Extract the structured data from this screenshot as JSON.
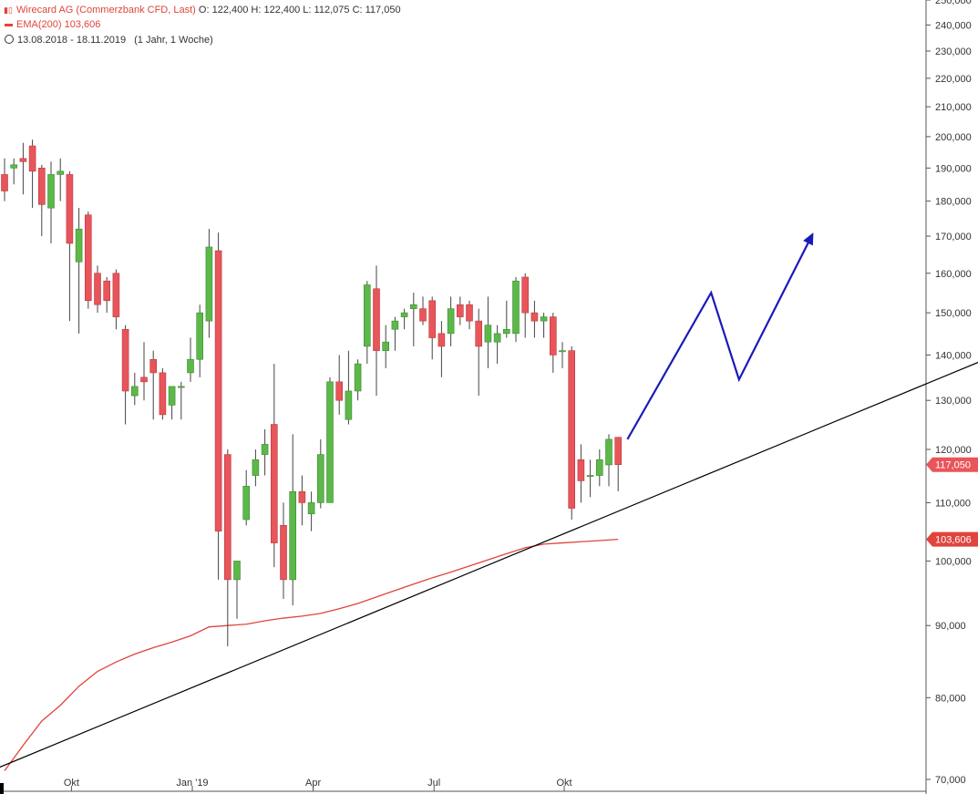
{
  "header": {
    "symbol": "Wirecard AG (Commerzbank CFD, Last)",
    "o_label": "O:",
    "o": "122,400",
    "h_label": "H:",
    "h": "122,400",
    "l_label": "L:",
    "l": "112,075",
    "c_label": "C:",
    "c": "117,050",
    "ema_label": "EMA(200)",
    "ema_value": "103,606",
    "range": "13.08.2018 - 18.11.2019",
    "period": "(1 Jahr, 1 Woche)"
  },
  "colors": {
    "up": "#5cb84a",
    "down": "#e8555a",
    "ema": "#e0443c",
    "trend": "#000000",
    "arrow": "#1a1ab8"
  },
  "chart_data": {
    "type": "candlestick",
    "scale": "log",
    "ylim": [
      70000,
      250000
    ],
    "yticks": [
      "250,000",
      "240,000",
      "230,000",
      "220,000",
      "210,000",
      "200,000",
      "190,000",
      "180,000",
      "170,000",
      "160,000",
      "150,000",
      "140,000",
      "130,000",
      "120,000",
      "110,000",
      "100,000",
      "90,000",
      "80,000",
      "70,000"
    ],
    "ytick_values": [
      250000,
      240000,
      230000,
      220000,
      210000,
      200000,
      190000,
      180000,
      170000,
      160000,
      150000,
      140000,
      130000,
      120000,
      110000,
      100000,
      90000,
      80000,
      70000
    ],
    "xticks": [
      {
        "label": "Okt",
        "week": 7
      },
      {
        "label": "Jan '19",
        "week": 20
      },
      {
        "label": "Apr",
        "week": 33
      },
      {
        "label": "Jul",
        "week": 46
      },
      {
        "label": "Okt",
        "week": 60
      }
    ],
    "price_tags": [
      {
        "label": "117,050",
        "value": 117050,
        "color": "#e8555a"
      },
      {
        "label": "103,606",
        "value": 103606,
        "color": "#e0443c"
      }
    ],
    "candles": [
      [
        188000,
        193000,
        180000,
        183000
      ],
      [
        190000,
        193000,
        185000,
        191000
      ],
      [
        193000,
        198000,
        182000,
        192000
      ],
      [
        197000,
        199000,
        178000,
        189000
      ],
      [
        190000,
        191000,
        170000,
        179000
      ],
      [
        178000,
        192000,
        168000,
        188000
      ],
      [
        188000,
        193000,
        180000,
        189000
      ],
      [
        188000,
        189000,
        148000,
        168000
      ],
      [
        163000,
        178000,
        145000,
        172000
      ],
      [
        176000,
        177000,
        151000,
        153000
      ],
      [
        160000,
        162000,
        150000,
        152000
      ],
      [
        158000,
        159000,
        150000,
        153000
      ],
      [
        160000,
        161000,
        146000,
        149000
      ],
      [
        146000,
        147000,
        125000,
        132000
      ],
      [
        131000,
        136000,
        129000,
        133000
      ],
      [
        135000,
        143000,
        130000,
        134000
      ],
      [
        139000,
        141000,
        126000,
        136000
      ],
      [
        136000,
        137000,
        126000,
        127000
      ],
      [
        129000,
        132000,
        126000,
        133000
      ],
      [
        133000,
        134000,
        126000,
        133000
      ],
      [
        136000,
        144000,
        134000,
        139000
      ],
      [
        139000,
        152000,
        135000,
        150000
      ],
      [
        148000,
        172000,
        144000,
        167000
      ],
      [
        166000,
        171000,
        97000,
        105000
      ],
      [
        119000,
        120000,
        87000,
        97000
      ],
      [
        97000,
        100000,
        91000,
        100000
      ],
      [
        107000,
        116000,
        106000,
        113000
      ],
      [
        115000,
        120000,
        113000,
        118000
      ],
      [
        119000,
        124000,
        115000,
        121000
      ],
      [
        125000,
        138000,
        99000,
        103000
      ],
      [
        106000,
        110000,
        94000,
        97000
      ],
      [
        97000,
        123000,
        93000,
        112000
      ],
      [
        112000,
        115000,
        106000,
        110000
      ],
      [
        108000,
        112000,
        105000,
        110000
      ],
      [
        110000,
        122000,
        109000,
        119000
      ],
      [
        110000,
        135000,
        110000,
        134000
      ],
      [
        134000,
        140000,
        127000,
        130000
      ],
      [
        126000,
        141000,
        125000,
        132000
      ],
      [
        132000,
        139000,
        130000,
        138000
      ],
      [
        142000,
        158000,
        138000,
        157000
      ],
      [
        156000,
        162000,
        131000,
        141000
      ],
      [
        141000,
        147000,
        137000,
        143000
      ],
      [
        146000,
        149000,
        141000,
        148000
      ],
      [
        149000,
        151000,
        146000,
        150000
      ],
      [
        151000,
        155000,
        142000,
        152000
      ],
      [
        151000,
        154000,
        147000,
        148000
      ],
      [
        153000,
        154000,
        139000,
        144000
      ],
      [
        145000,
        148000,
        135000,
        142000
      ],
      [
        145000,
        154000,
        142000,
        151000
      ],
      [
        152000,
        154000,
        147000,
        149000
      ],
      [
        152000,
        153000,
        146000,
        148000
      ],
      [
        148000,
        151000,
        131000,
        142000
      ],
      [
        143000,
        154000,
        137000,
        147000
      ],
      [
        143000,
        147000,
        138000,
        145000
      ],
      [
        145000,
        153000,
        144000,
        146000
      ],
      [
        145000,
        159000,
        143000,
        158000
      ],
      [
        159000,
        160000,
        144000,
        150000
      ],
      [
        150000,
        153000,
        144000,
        148000
      ],
      [
        148000,
        150000,
        144000,
        149000
      ],
      [
        149000,
        150000,
        136000,
        140000
      ],
      [
        141000,
        143000,
        137000,
        141000
      ],
      [
        141000,
        142000,
        107000,
        109000
      ],
      [
        118000,
        121000,
        110000,
        114000
      ],
      [
        115000,
        118000,
        111000,
        115000
      ],
      [
        115000,
        120000,
        113000,
        118000
      ],
      [
        117000,
        123000,
        113000,
        122000
      ],
      [
        122400,
        122400,
        112075,
        117050
      ]
    ],
    "ema200": [
      [
        0,
        71000
      ],
      [
        2,
        74000
      ],
      [
        4,
        77000
      ],
      [
        6,
        79000
      ],
      [
        8,
        81500
      ],
      [
        10,
        83500
      ],
      [
        12,
        84800
      ],
      [
        14,
        85900
      ],
      [
        16,
        86800
      ],
      [
        18,
        87600
      ],
      [
        20,
        88500
      ],
      [
        22,
        89800
      ],
      [
        24,
        90000
      ],
      [
        26,
        90200
      ],
      [
        28,
        90700
      ],
      [
        30,
        91100
      ],
      [
        32,
        91400
      ],
      [
        34,
        91800
      ],
      [
        36,
        92500
      ],
      [
        38,
        93300
      ],
      [
        40,
        94300
      ],
      [
        42,
        95300
      ],
      [
        44,
        96300
      ],
      [
        46,
        97300
      ],
      [
        48,
        98200
      ],
      [
        50,
        99200
      ],
      [
        52,
        100200
      ],
      [
        54,
        101200
      ],
      [
        56,
        102200
      ],
      [
        58,
        102800
      ],
      [
        60,
        103000
      ],
      [
        62,
        103200
      ],
      [
        64,
        103400
      ],
      [
        66,
        103606
      ]
    ],
    "trendline": [
      [
        -6,
        69000
      ],
      [
        110,
        143000
      ]
    ],
    "projection": [
      [
        67,
        122000
      ],
      [
        76,
        155000
      ],
      [
        79,
        134500
      ],
      [
        87,
        171000
      ]
    ]
  }
}
